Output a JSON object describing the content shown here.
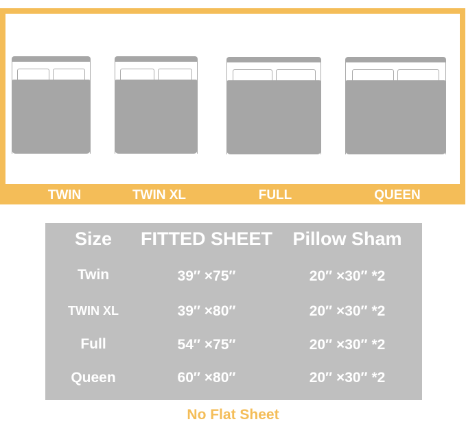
{
  "sizes": [
    "TWIN",
    "TWIN XL",
    "FULL",
    "QUEEN"
  ],
  "table": {
    "headers": [
      "Size",
      "FITTED SHEET",
      "Pillow Sham"
    ],
    "rows": [
      [
        "Twin",
        "39″ ×75″",
        "20″ ×30″ *2"
      ],
      [
        "TWIN XL",
        "39″ ×80″",
        "20″ ×30″ *2"
      ],
      [
        "Full",
        "54″ ×75″",
        "20″ ×30″ *2"
      ],
      [
        "Queen",
        "60″ ×80″",
        "20″ ×30″ *2"
      ]
    ]
  },
  "note": "No Flat Sheet",
  "colors": {
    "accent": "#f4bd58",
    "gray": "#a6a6a6",
    "table_bg": "#bfbfbf"
  }
}
